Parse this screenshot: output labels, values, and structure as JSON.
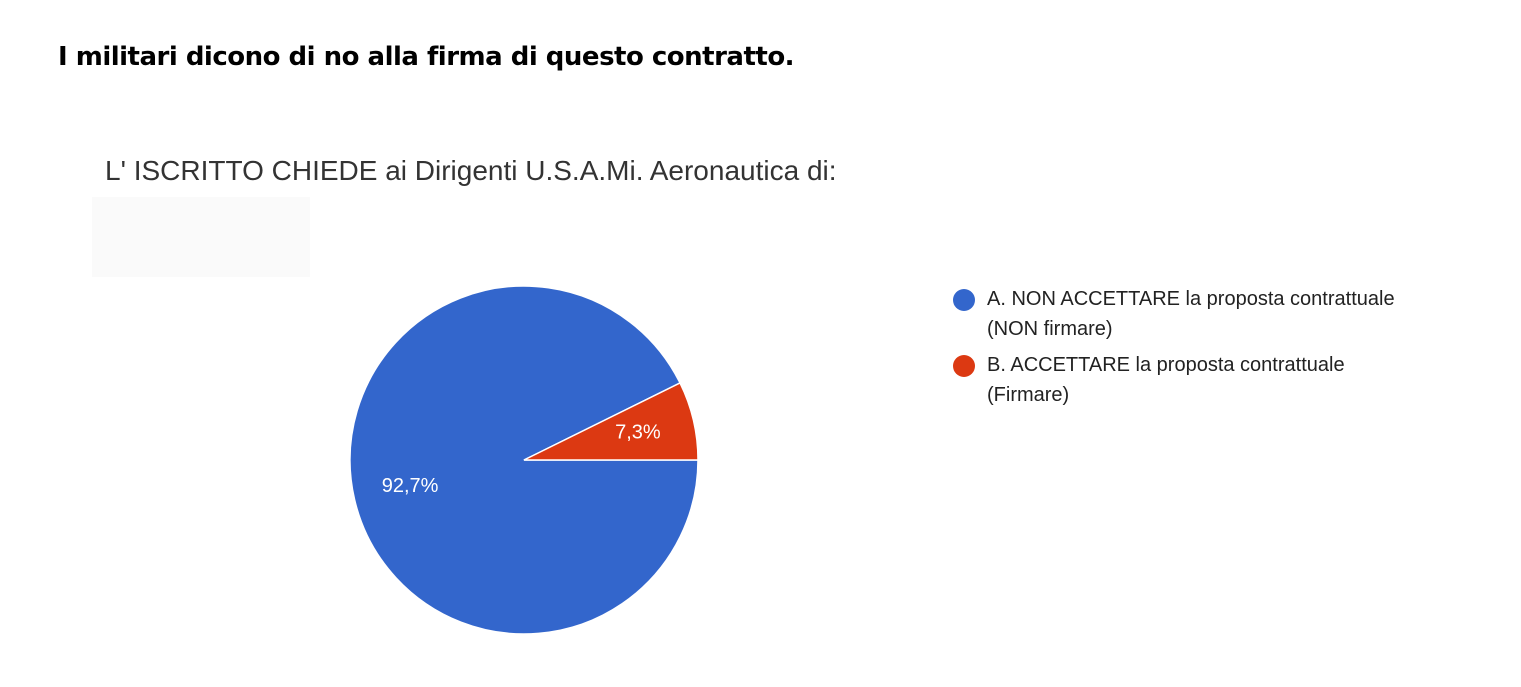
{
  "header": {
    "title": "I militari dicono di no alla firma di questo contratto."
  },
  "chart_data": {
    "type": "pie",
    "title": "L' ISCRITTO CHIEDE ai Dirigenti U.S.A.Mi. Aeronautica di:",
    "categories": [
      "A. NON ACCETTARE la proposta contrattuale (NON firmare)",
      "B. ACCETTARE la proposta contrattuale (Firmare)"
    ],
    "values": [
      92.7,
      7.3
    ],
    "value_labels": [
      "92,7%",
      "7,3%"
    ],
    "colors": [
      "#3366cc",
      "#dc3912"
    ],
    "legend": "right"
  }
}
